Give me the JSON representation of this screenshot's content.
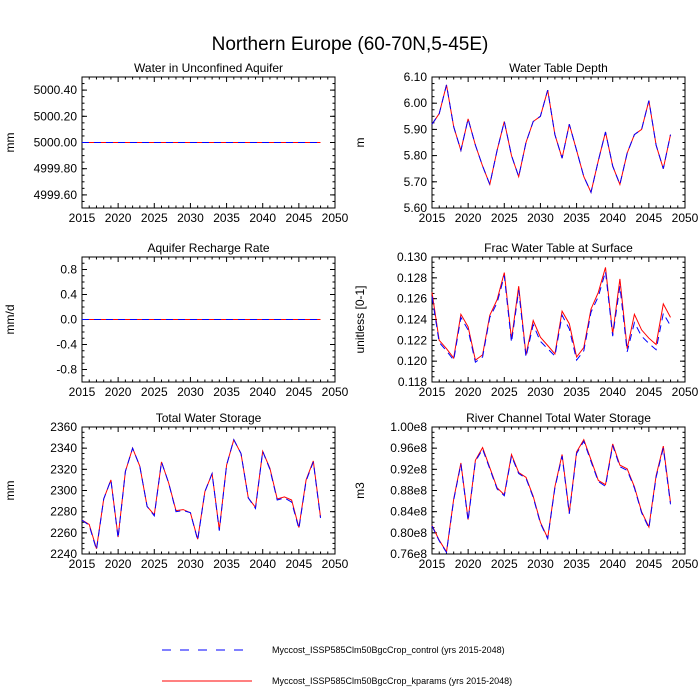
{
  "figure": {
    "title": "Northern Europe (60-70N,5-45E)",
    "legend": [
      {
        "label": "Myccost_ISSP585Clm50BgcCrop_control (yrs 2015-2048)",
        "color": "#0000ff",
        "style": "dashed"
      },
      {
        "label": "Myccost_ISSP585Clm50BgcCrop_kparams (yrs 2015-2048)",
        "color": "#ff0000",
        "style": "solid"
      }
    ]
  },
  "chart_data": [
    {
      "type": "line",
      "title": "Water in Unconfined Aquifer",
      "ylabel": "mm",
      "xlim": [
        2015,
        2050
      ],
      "ylim": [
        4999.5,
        5000.5
      ],
      "xticks": [
        "2015",
        "2020",
        "2025",
        "2030",
        "2035",
        "2040",
        "2045",
        "2050"
      ],
      "yticks": [
        4999.6,
        4999.8,
        5000.0,
        5000.2,
        5000.4
      ],
      "ytick_labels": [
        "4999.60",
        "4999.80",
        "5000.00",
        "5000.20",
        "5000.40"
      ],
      "x": [
        2015,
        2016,
        2017,
        2018,
        2019,
        2020,
        2021,
        2022,
        2023,
        2024,
        2025,
        2026,
        2027,
        2028,
        2029,
        2030,
        2031,
        2032,
        2033,
        2034,
        2035,
        2036,
        2037,
        2038,
        2039,
        2040,
        2041,
        2042,
        2043,
        2044,
        2045,
        2046,
        2047,
        2048
      ],
      "series": [
        {
          "values": [
            5000,
            5000,
            5000,
            5000,
            5000,
            5000,
            5000,
            5000,
            5000,
            5000,
            5000,
            5000,
            5000,
            5000,
            5000,
            5000,
            5000,
            5000,
            5000,
            5000,
            5000,
            5000,
            5000,
            5000,
            5000,
            5000,
            5000,
            5000,
            5000,
            5000,
            5000,
            5000,
            5000,
            5000
          ]
        },
        {
          "values": [
            5000,
            5000,
            5000,
            5000,
            5000,
            5000,
            5000,
            5000,
            5000,
            5000,
            5000,
            5000,
            5000,
            5000,
            5000,
            5000,
            5000,
            5000,
            5000,
            5000,
            5000,
            5000,
            5000,
            5000,
            5000,
            5000,
            5000,
            5000,
            5000,
            5000,
            5000,
            5000,
            5000,
            5000
          ]
        }
      ]
    },
    {
      "type": "line",
      "title": "Water Table Depth",
      "ylabel": "m",
      "xlim": [
        2015,
        2050
      ],
      "ylim": [
        5.6,
        6.1
      ],
      "xticks": [
        "2015",
        "2020",
        "2025",
        "2030",
        "2035",
        "2040",
        "2045",
        "2050"
      ],
      "yticks": [
        5.6,
        5.7,
        5.8,
        5.9,
        6.0,
        6.1
      ],
      "ytick_labels": [
        "5.60",
        "5.70",
        "5.80",
        "5.90",
        "6.00",
        "6.10"
      ],
      "x": [
        2015,
        2016,
        2017,
        2018,
        2019,
        2020,
        2021,
        2022,
        2023,
        2024,
        2025,
        2026,
        2027,
        2028,
        2029,
        2030,
        2031,
        2032,
        2033,
        2034,
        2035,
        2036,
        2037,
        2038,
        2039,
        2040,
        2041,
        2042,
        2043,
        2044,
        2045,
        2046,
        2047,
        2048
      ],
      "series": [
        {
          "values": [
            5.92,
            5.96,
            6.07,
            5.91,
            5.82,
            5.94,
            5.84,
            5.76,
            5.69,
            5.82,
            5.93,
            5.8,
            5.72,
            5.85,
            5.93,
            5.95,
            6.05,
            5.88,
            5.79,
            5.92,
            5.82,
            5.72,
            5.66,
            5.78,
            5.89,
            5.76,
            5.69,
            5.81,
            5.88,
            5.9,
            6.01,
            5.84,
            5.75,
            5.88
          ]
        },
        {
          "values": [
            5.92,
            5.96,
            6.07,
            5.91,
            5.82,
            5.94,
            5.84,
            5.76,
            5.69,
            5.82,
            5.93,
            5.8,
            5.72,
            5.85,
            5.93,
            5.95,
            6.05,
            5.88,
            5.79,
            5.92,
            5.82,
            5.72,
            5.66,
            5.78,
            5.89,
            5.76,
            5.69,
            5.81,
            5.88,
            5.9,
            6.01,
            5.84,
            5.75,
            5.88
          ]
        }
      ]
    },
    {
      "type": "line",
      "title": "Aquifer Recharge Rate",
      "ylabel": "mm/d",
      "xlim": [
        2015,
        2050
      ],
      "ylim": [
        -1.0,
        1.0
      ],
      "xticks": [
        "2015",
        "2020",
        "2025",
        "2030",
        "2035",
        "2040",
        "2045",
        "2050"
      ],
      "yticks": [
        -0.8,
        -0.4,
        0.0,
        0.4,
        0.8
      ],
      "ytick_labels": [
        "-0.8",
        "-0.4",
        "0.0",
        "0.4",
        "0.8"
      ],
      "x": [
        2015,
        2016,
        2017,
        2018,
        2019,
        2020,
        2021,
        2022,
        2023,
        2024,
        2025,
        2026,
        2027,
        2028,
        2029,
        2030,
        2031,
        2032,
        2033,
        2034,
        2035,
        2036,
        2037,
        2038,
        2039,
        2040,
        2041,
        2042,
        2043,
        2044,
        2045,
        2046,
        2047,
        2048
      ],
      "series": [
        {
          "values": [
            0,
            0,
            0,
            0,
            0,
            0,
            0,
            0,
            0,
            0,
            0,
            0,
            0,
            0,
            0,
            0,
            0,
            0,
            0,
            0,
            0,
            0,
            0,
            0,
            0,
            0,
            0,
            0,
            0,
            0,
            0,
            0,
            0,
            0
          ]
        },
        {
          "values": [
            0,
            0,
            0,
            0,
            0,
            0,
            0,
            0,
            0,
            0,
            0,
            0,
            0,
            0,
            0,
            0,
            0,
            0,
            0,
            0,
            0,
            0,
            0,
            0,
            0,
            0,
            0,
            0,
            0,
            0,
            0,
            0,
            0,
            0
          ]
        }
      ]
    },
    {
      "type": "line",
      "title": "Frac Water Table at Surface",
      "ylabel": "unitless [0-1]",
      "xlim": [
        2015,
        2050
      ],
      "ylim": [
        0.118,
        0.13
      ],
      "xticks": [
        "2015",
        "2020",
        "2025",
        "2030",
        "2035",
        "2040",
        "2045",
        "2050"
      ],
      "yticks": [
        0.118,
        0.12,
        0.122,
        0.124,
        0.126,
        0.128,
        0.13
      ],
      "ytick_labels": [
        "0.118",
        "0.120",
        "0.122",
        "0.124",
        "0.126",
        "0.128",
        "0.130"
      ],
      "x": [
        2015,
        2016,
        2017,
        2018,
        2019,
        2020,
        2021,
        2022,
        2023,
        2024,
        2025,
        2026,
        2027,
        2028,
        2029,
        2030,
        2031,
        2032,
        2033,
        2034,
        2035,
        2036,
        2037,
        2038,
        2039,
        2040,
        2041,
        2042,
        2043,
        2044,
        2045,
        2046,
        2047,
        2048
      ],
      "series": [
        {
          "values": [
            0.1262,
            0.1218,
            0.121,
            0.1201,
            0.1242,
            0.123,
            0.1199,
            0.1204,
            0.1242,
            0.1256,
            0.1282,
            0.1218,
            0.1268,
            0.1204,
            0.1235,
            0.1219,
            0.1212,
            0.1205,
            0.1244,
            0.1231,
            0.1201,
            0.121,
            0.1247,
            0.1262,
            0.1286,
            0.1224,
            0.1272,
            0.1209,
            0.1237,
            0.1224,
            0.1217,
            0.1211,
            0.1246,
            0.1234
          ]
        },
        {
          "values": [
            0.1266,
            0.122,
            0.1212,
            0.1203,
            0.1245,
            0.1233,
            0.1201,
            0.1206,
            0.1244,
            0.1259,
            0.1285,
            0.1221,
            0.1272,
            0.1206,
            0.1239,
            0.1223,
            0.1215,
            0.1207,
            0.1248,
            0.1236,
            0.1204,
            0.1213,
            0.125,
            0.1266,
            0.129,
            0.1226,
            0.1279,
            0.1212,
            0.1245,
            0.123,
            0.1222,
            0.1216,
            0.1255,
            0.1242
          ]
        }
      ]
    },
    {
      "type": "line",
      "title": "Total Water Storage",
      "ylabel": "mm",
      "xlim": [
        2015,
        2050
      ],
      "ylim": [
        2240,
        2360
      ],
      "xticks": [
        "2015",
        "2020",
        "2025",
        "2030",
        "2035",
        "2040",
        "2045",
        "2050"
      ],
      "yticks": [
        2240,
        2260,
        2280,
        2300,
        2320,
        2340,
        2360
      ],
      "ytick_labels": [
        "2240",
        "2260",
        "2280",
        "2300",
        "2320",
        "2340",
        "2360"
      ],
      "x": [
        2015,
        2016,
        2017,
        2018,
        2019,
        2020,
        2021,
        2022,
        2023,
        2024,
        2025,
        2026,
        2027,
        2028,
        2029,
        2030,
        2031,
        2032,
        2033,
        2034,
        2035,
        2036,
        2037,
        2038,
        2039,
        2040,
        2041,
        2042,
        2043,
        2044,
        2045,
        2046,
        2047,
        2048
      ],
      "series": [
        {
          "values": [
            2272,
            2267,
            2244,
            2292,
            2310,
            2255,
            2318,
            2340,
            2323,
            2285,
            2276,
            2327,
            2307,
            2280,
            2281,
            2279,
            2253,
            2299,
            2316,
            2262,
            2324,
            2348,
            2335,
            2293,
            2283,
            2337,
            2320,
            2291,
            2293,
            2289,
            2264,
            2309,
            2327,
            2274
          ]
        },
        {
          "values": [
            2272,
            2268,
            2245,
            2292,
            2310,
            2256,
            2318,
            2340,
            2323,
            2285,
            2277,
            2327,
            2307,
            2281,
            2282,
            2279,
            2254,
            2299,
            2316,
            2263,
            2324,
            2348,
            2335,
            2293,
            2284,
            2337,
            2321,
            2292,
            2294,
            2291,
            2265,
            2310,
            2328,
            2275
          ]
        }
      ]
    },
    {
      "type": "line",
      "title": "River Channel Total Water Storage",
      "ylabel": "m3",
      "xlim": [
        2015,
        2050
      ],
      "ylim": [
        76000000.0,
        100000000.0
      ],
      "xticks": [
        "2015",
        "2020",
        "2025",
        "2030",
        "2035",
        "2040",
        "2045",
        "2050"
      ],
      "yticks": [
        76000000.0,
        80000000.0,
        84000000.0,
        88000000.0,
        92000000.0,
        96000000.0,
        100000000.0
      ],
      "ytick_labels": [
        "0.76e8",
        "0.80e8",
        "0.84e8",
        "0.88e8",
        "0.92e8",
        "0.96e8",
        "1.00e8"
      ],
      "x": [
        2015,
        2016,
        2017,
        2018,
        2019,
        2020,
        2021,
        2022,
        2023,
        2024,
        2025,
        2026,
        2027,
        2028,
        2029,
        2030,
        2031,
        2032,
        2033,
        2034,
        2035,
        2036,
        2037,
        2038,
        2039,
        2040,
        2041,
        2042,
        2043,
        2044,
        2045,
        2046,
        2047,
        2048
      ],
      "series": [
        {
          "values": [
            81300000.0,
            78500000.0,
            76300000.0,
            86200000.0,
            93000000.0,
            82300000.0,
            93500000.0,
            95800000.0,
            92100000.0,
            88300000.0,
            87000000.0,
            94500000.0,
            91200000.0,
            90300000.0,
            86700000.0,
            81800000.0,
            78900000.0,
            88500000.0,
            94500000.0,
            83600000.0,
            95000000.0,
            97300000.0,
            93500000.0,
            89700000.0,
            88800000.0,
            96500000.0,
            92500000.0,
            91800000.0,
            88500000.0,
            83800000.0,
            80900000.0,
            90500000.0,
            96000000.0,
            85400000.0
          ]
        },
        {
          "values": [
            81400000.0,
            78600000.0,
            76400000.0,
            86400000.0,
            93200000.0,
            82500000.0,
            93700000.0,
            96100000.0,
            92300000.0,
            88500000.0,
            87200000.0,
            94800000.0,
            91400000.0,
            90500000.0,
            86900000.0,
            82000000.0,
            79000000.0,
            88700000.0,
            94800000.0,
            83800000.0,
            95300000.0,
            97600000.0,
            93800000.0,
            89900000.0,
            89100000.0,
            96800000.0,
            92800000.0,
            92100000.0,
            88700000.0,
            84000000.0,
            81100000.0,
            90800000.0,
            96400000.0,
            85700000.0
          ]
        }
      ]
    }
  ]
}
